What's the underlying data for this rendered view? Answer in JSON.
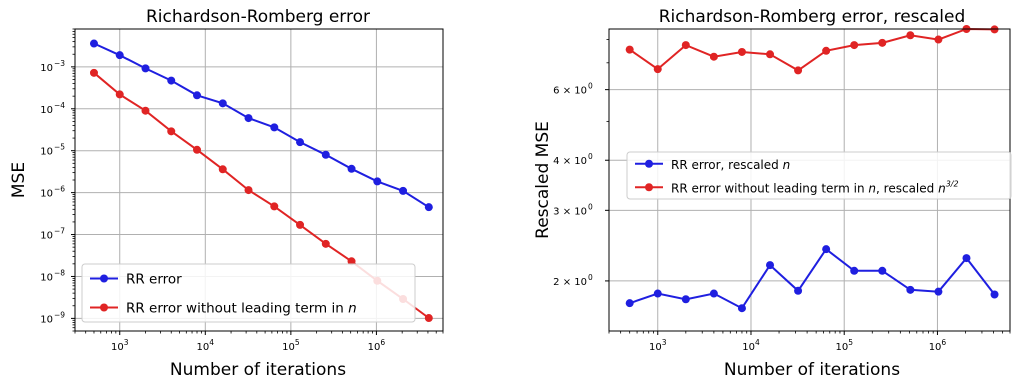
{
  "chart_data": [
    {
      "type": "line",
      "title": "Richardson-Romberg error",
      "xlabel": "Number of iterations",
      "ylabel": "MSE",
      "xscale": "log",
      "yscale": "log",
      "xlim": [
        300,
        6000000
      ],
      "ylim": [
        5e-10,
        0.008
      ],
      "xticks": [
        {
          "value": 1000,
          "base": "10",
          "exp": "3"
        },
        {
          "value": 10000,
          "base": "10",
          "exp": "4"
        },
        {
          "value": 100000,
          "base": "10",
          "exp": "5"
        },
        {
          "value": 1000000,
          "base": "10",
          "exp": "6"
        }
      ],
      "yticks": [
        {
          "value": 1e-09,
          "base": "10",
          "exp": "−9"
        },
        {
          "value": 1e-08,
          "base": "10",
          "exp": "−8"
        },
        {
          "value": 1e-07,
          "base": "10",
          "exp": "−7"
        },
        {
          "value": 1e-06,
          "base": "10",
          "exp": "−6"
        },
        {
          "value": 1e-05,
          "base": "10",
          "exp": "−5"
        },
        {
          "value": 0.0001,
          "base": "10",
          "exp": "−4"
        },
        {
          "value": 0.001,
          "base": "10",
          "exp": "−3"
        }
      ],
      "grid": true,
      "legend_position": "lower-left",
      "series": [
        {
          "name": "RR error",
          "color": "#1f1fe0",
          "x": [
            500,
            1000,
            2000,
            4000,
            8000,
            16000,
            32000,
            64000,
            128000,
            256000,
            512000,
            1024000,
            2048000,
            4096000
          ],
          "y": [
            0.0036,
            0.0019,
            0.00092,
            0.00047,
            0.00021,
            0.000135,
            6e-05,
            3.6e-05,
            1.6e-05,
            8e-06,
            3.7e-06,
            1.85e-06,
            1.1e-06,
            4.5e-07
          ]
        },
        {
          "name": "RR error without leading term in ",
          "name_italic": "n",
          "color": "#e02424",
          "x": [
            500,
            1000,
            2000,
            4000,
            8000,
            16000,
            32000,
            64000,
            128000,
            256000,
            512000,
            1024000,
            2048000,
            4096000
          ],
          "y": [
            0.00072,
            0.00022,
            9e-05,
            2.9e-05,
            1.05e-05,
            3.6e-06,
            1.15e-06,
            4.7e-07,
            1.7e-07,
            6e-08,
            2.3e-08,
            7.9e-09,
            2.9e-09,
            1.02e-09
          ]
        }
      ]
    },
    {
      "type": "line",
      "title": "Richardson-Romberg error, rescaled",
      "xlabel": "Number of iterations",
      "ylabel": "Rescaled MSE",
      "xscale": "log",
      "yscale": "log",
      "xlim": [
        300,
        6000000
      ],
      "ylim": [
        1.5,
        8.5
      ],
      "xticks": [
        {
          "value": 1000,
          "base": "10",
          "exp": "3"
        },
        {
          "value": 10000,
          "base": "10",
          "exp": "4"
        },
        {
          "value": 100000,
          "base": "10",
          "exp": "5"
        },
        {
          "value": 1000000,
          "base": "10",
          "exp": "6"
        }
      ],
      "yticks": [
        {
          "value": 2,
          "base": "2 × 10",
          "exp": "0"
        },
        {
          "value": 3,
          "base": "3 × 10",
          "exp": "0"
        },
        {
          "value": 4,
          "base": "4 × 10",
          "exp": "0"
        },
        {
          "value": 6,
          "base": "6 × 10",
          "exp": "0"
        }
      ],
      "grid": true,
      "legend_position": "center-left",
      "series": [
        {
          "name": "RR error, rescaled ",
          "name_italic": "n",
          "color": "#1f1fe0",
          "x": [
            500,
            1000,
            2000,
            4000,
            8000,
            16000,
            32000,
            64000,
            128000,
            256000,
            512000,
            1024000,
            2048000,
            4096000
          ],
          "y": [
            1.76,
            1.86,
            1.8,
            1.86,
            1.71,
            2.19,
            1.89,
            2.4,
            2.12,
            2.12,
            1.9,
            1.88,
            2.28,
            1.85
          ]
        },
        {
          "name": "RR error without leading term in ",
          "name_italic": "n",
          "name_suffix": ", rescaled ",
          "name_italic2": "n",
          "name_sup": "3/2",
          "color": "#e02424",
          "x": [
            500,
            1000,
            2000,
            4000,
            8000,
            16000,
            32000,
            64000,
            128000,
            256000,
            512000,
            1024000,
            2048000,
            4096000
          ],
          "y": [
            7.55,
            6.75,
            7.75,
            7.25,
            7.45,
            7.35,
            6.7,
            7.5,
            7.75,
            7.85,
            8.2,
            8.0,
            8.5,
            8.48
          ]
        }
      ]
    }
  ]
}
